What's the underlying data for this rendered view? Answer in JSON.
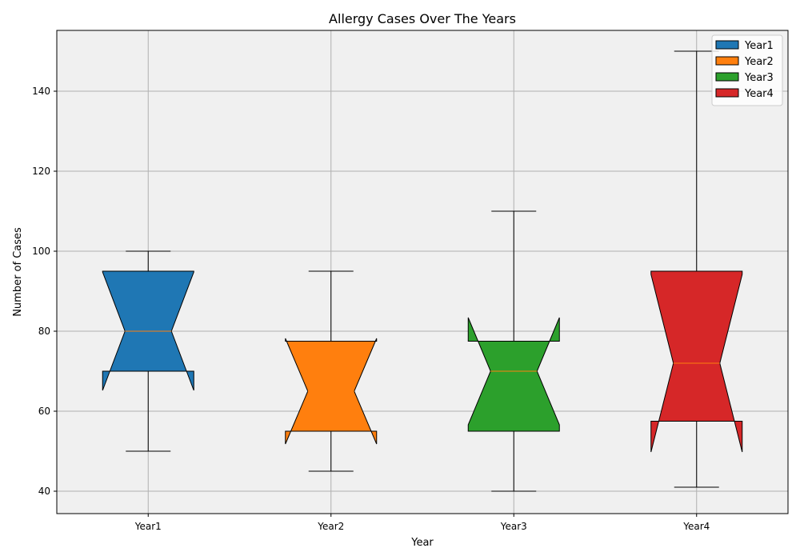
{
  "chart_data": {
    "type": "box",
    "notched": true,
    "title": "Allergy Cases Over The Years",
    "xlabel": "Year",
    "ylabel": "Number of Cases",
    "ylim": [
      34.4,
      155.2
    ],
    "yticks": [
      40,
      60,
      80,
      100,
      120,
      140
    ],
    "categories": [
      "Year1",
      "Year2",
      "Year3",
      "Year4"
    ],
    "grid": true,
    "legend_placement": "top-right",
    "background_color": "#f0f0f0",
    "median_color": "#ff7f0e",
    "series": [
      {
        "name": "Year1",
        "color": "#1f77b4",
        "whisker_low": 50,
        "q1": 70,
        "median": 80,
        "q3": 95,
        "whisker_high": 100,
        "notch_low": 65.2,
        "notch_high": 94.8
      },
      {
        "name": "Year2",
        "color": "#ff7f0e",
        "whisker_low": 45,
        "q1": 55,
        "median": 65,
        "q3": 77.5,
        "whisker_high": 95,
        "notch_low": 51.8,
        "notch_high": 78.2
      },
      {
        "name": "Year3",
        "color": "#2ca02c",
        "whisker_low": 40,
        "q1": 55,
        "median": 70,
        "q3": 77.5,
        "whisker_high": 110,
        "notch_low": 56.6,
        "notch_high": 83.4
      },
      {
        "name": "Year4",
        "color": "#d62728",
        "whisker_low": 41,
        "q1": 57.5,
        "median": 72,
        "q3": 95,
        "whisker_high": 150,
        "notch_low": 49.8,
        "notch_high": 94.2
      }
    ]
  }
}
